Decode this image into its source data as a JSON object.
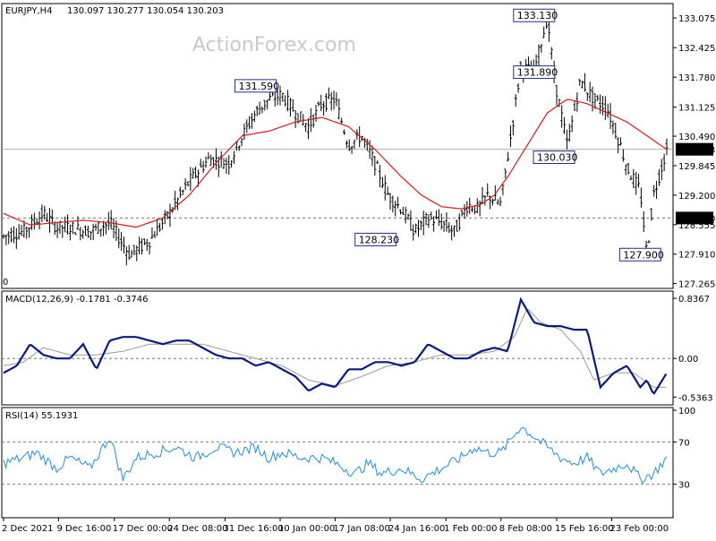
{
  "watermark": "ActionForex.com",
  "chart_data": [
    {
      "type": "candlestick",
      "pane": "price",
      "title": "EURJPY,H4",
      "ohlc_header": "130.097 130.277 130.054 130.203",
      "ylim": [
        127.2,
        133.35
      ],
      "y_ticks": [
        "133.075",
        "132.425",
        "131.780",
        "131.125",
        "130.490",
        "129.845",
        "129.200",
        "128.555",
        "127.910",
        "127.265"
      ],
      "current_price": "130.203",
      "dashed_level": "128.700",
      "cut_label": "0",
      "callouts": [
        {
          "text": "131.590",
          "t": 0.38,
          "v": 131.59
        },
        {
          "text": "128.230",
          "t": 0.561,
          "v": 128.23
        },
        {
          "text": "133.130",
          "t": 0.8,
          "v": 133.13
        },
        {
          "text": "131.890",
          "t": 0.8,
          "v": 131.89
        },
        {
          "text": "130.030",
          "t": 0.83,
          "v": 130.03
        },
        {
          "text": "127.900",
          "t": 0.96,
          "v": 127.9
        }
      ],
      "series": [
        {
          "name": "price",
          "t": [
            0,
            0.03,
            0.06,
            0.08,
            0.1,
            0.13,
            0.16,
            0.19,
            0.22,
            0.25,
            0.28,
            0.31,
            0.34,
            0.36,
            0.38,
            0.4,
            0.42,
            0.44,
            0.46,
            0.48,
            0.5,
            0.52,
            0.54,
            0.56,
            0.58,
            0.6,
            0.62,
            0.64,
            0.66,
            0.68,
            0.7,
            0.715,
            0.73,
            0.75,
            0.78,
            0.8,
            0.82,
            0.83,
            0.85,
            0.87,
            0.89,
            0.91,
            0.93,
            0.94,
            0.96,
            0.97,
            0.98,
            1.0
          ],
          "values": [
            128.3,
            128.4,
            128.8,
            128.5,
            128.5,
            128.4,
            128.6,
            127.9,
            128.2,
            128.8,
            129.5,
            130.0,
            129.9,
            130.5,
            131.0,
            131.3,
            131.4,
            131.0,
            130.7,
            131.2,
            131.3,
            130.3,
            130.5,
            129.9,
            129.2,
            128.9,
            128.4,
            128.7,
            128.6,
            128.4,
            129.0,
            128.9,
            129.2,
            129.0,
            132.0,
            131.9,
            133.1,
            131.8,
            130.3,
            131.7,
            131.3,
            131.1,
            130.3,
            129.8,
            129.3,
            127.9,
            129.2,
            130.2
          ]
        },
        {
          "name": "moving average",
          "t": [
            0,
            0.04,
            0.08,
            0.12,
            0.16,
            0.2,
            0.24,
            0.28,
            0.32,
            0.36,
            0.4,
            0.44,
            0.48,
            0.52,
            0.56,
            0.6,
            0.63,
            0.66,
            0.69,
            0.72,
            0.74,
            0.76,
            0.79,
            0.82,
            0.85,
            0.88,
            0.91,
            0.94,
            0.97,
            1.0
          ],
          "values": [
            128.8,
            128.55,
            128.6,
            128.65,
            128.6,
            128.5,
            128.7,
            129.2,
            129.9,
            130.5,
            130.6,
            130.8,
            130.9,
            130.7,
            130.2,
            129.6,
            129.2,
            128.95,
            128.9,
            129.0,
            129.2,
            129.6,
            130.3,
            131.0,
            131.3,
            131.2,
            131.0,
            130.8,
            130.5,
            130.2
          ]
        }
      ]
    },
    {
      "type": "line",
      "pane": "macd",
      "title": "MACD(12,26,9) -0.1781 -0.3746",
      "ylim": [
        -0.62,
        0.9
      ],
      "y_ticks": [
        "0.8367",
        "0.00",
        "-0.5363"
      ],
      "series": [
        {
          "name": "MACD",
          "t": [
            0,
            0.02,
            0.04,
            0.06,
            0.08,
            0.1,
            0.12,
            0.14,
            0.16,
            0.18,
            0.2,
            0.22,
            0.24,
            0.26,
            0.28,
            0.3,
            0.32,
            0.34,
            0.36,
            0.38,
            0.4,
            0.42,
            0.44,
            0.46,
            0.48,
            0.5,
            0.52,
            0.54,
            0.56,
            0.58,
            0.6,
            0.62,
            0.64,
            0.66,
            0.68,
            0.7,
            0.72,
            0.74,
            0.76,
            0.78,
            0.8,
            0.82,
            0.84,
            0.86,
            0.87,
            0.88,
            0.9,
            0.92,
            0.94,
            0.96,
            0.97,
            0.98,
            1.0
          ],
          "values": [
            -0.2,
            -0.1,
            0.2,
            0.05,
            0.0,
            0.0,
            0.2,
            -0.15,
            0.25,
            0.3,
            0.3,
            0.25,
            0.2,
            0.25,
            0.25,
            0.15,
            0.05,
            0.0,
            0.0,
            -0.1,
            -0.05,
            -0.15,
            -0.25,
            -0.45,
            -0.35,
            -0.4,
            -0.15,
            -0.15,
            -0.05,
            -0.05,
            -0.1,
            -0.05,
            0.2,
            0.1,
            0.0,
            0.0,
            0.1,
            0.15,
            0.1,
            0.82,
            0.5,
            0.45,
            0.45,
            0.4,
            0.4,
            0.4,
            -0.4,
            -0.2,
            -0.1,
            -0.4,
            -0.3,
            -0.5,
            -0.2
          ]
        },
        {
          "name": "signal",
          "t": [
            0,
            0.03,
            0.06,
            0.1,
            0.14,
            0.18,
            0.22,
            0.26,
            0.3,
            0.34,
            0.38,
            0.42,
            0.46,
            0.5,
            0.54,
            0.58,
            0.62,
            0.66,
            0.7,
            0.74,
            0.77,
            0.79,
            0.81,
            0.84,
            0.87,
            0.89,
            0.92,
            0.95,
            0.98,
            1.0
          ],
          "values": [
            -0.1,
            -0.05,
            0.15,
            0.05,
            0.05,
            0.1,
            0.2,
            0.2,
            0.2,
            0.1,
            0.0,
            -0.1,
            -0.3,
            -0.38,
            -0.25,
            -0.1,
            -0.05,
            0.05,
            0.05,
            0.1,
            0.3,
            0.7,
            0.5,
            0.4,
            0.1,
            -0.3,
            -0.2,
            -0.2,
            -0.4,
            -0.4
          ]
        }
      ]
    },
    {
      "type": "line",
      "pane": "rsi",
      "title": "RSI(14) 55.1931",
      "ylim": [
        0,
        100
      ],
      "y_ticks": [
        "100",
        "70",
        "30"
      ],
      "series": [
        {
          "name": "RSI",
          "t": [
            0,
            0.03,
            0.05,
            0.08,
            0.1,
            0.13,
            0.16,
            0.18,
            0.2,
            0.23,
            0.26,
            0.29,
            0.32,
            0.35,
            0.38,
            0.4,
            0.42,
            0.45,
            0.48,
            0.5,
            0.53,
            0.55,
            0.57,
            0.6,
            0.63,
            0.66,
            0.69,
            0.71,
            0.73,
            0.75,
            0.78,
            0.8,
            0.82,
            0.84,
            0.86,
            0.88,
            0.9,
            0.92,
            0.94,
            0.96,
            0.98,
            1.0
          ],
          "values": [
            50,
            55,
            60,
            45,
            55,
            45,
            75,
            35,
            55,
            60,
            65,
            55,
            65,
            60,
            65,
            55,
            60,
            55,
            55,
            50,
            40,
            50,
            40,
            45,
            35,
            45,
            55,
            65,
            60,
            60,
            85,
            75,
            65,
            55,
            50,
            55,
            40,
            45,
            50,
            35,
            40,
            55
          ]
        }
      ]
    }
  ],
  "x_axis": {
    "labels": [
      "2 Dec 2021",
      "9 Dec 16:00",
      "17 Dec 00:00",
      "24 Dec 08:00",
      "31 Dec 16:00",
      "10 Jan 00:00",
      "17 Jan 08:00",
      "24 Jan 16:00",
      "1 Feb 00:00",
      "8 Feb 08:00",
      "15 Feb 16:00",
      "23 Feb 00:00"
    ],
    "positions": [
      0,
      0.083,
      0.167,
      0.25,
      0.334,
      0.417,
      0.5,
      0.583,
      0.667,
      0.75,
      0.834,
      0.917
    ]
  },
  "colors": {
    "price": "#000000",
    "moving_average": "#d21e1e",
    "macd": "#0a1a80",
    "signal": "#9a9a9a",
    "rsi": "#1e8fe0",
    "frame": "#000000",
    "grid_dash": "#777777",
    "callout_fill": "#ffffff"
  }
}
